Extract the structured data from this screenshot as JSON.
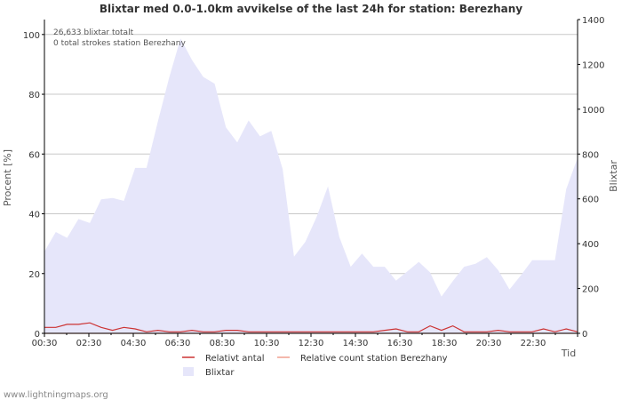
{
  "chart_data": {
    "type": "area",
    "title": "Blixtar med 0.0-1.0km avvikelse of the last 24h for station: Berezhany",
    "xlabel": "Tid",
    "ylabel_left": "Procent   [%]",
    "ylabel_right": "Blixtar",
    "ylim_left": [
      0,
      105
    ],
    "ylim_right": [
      0,
      1400
    ],
    "yticks_left": [
      "0",
      "20",
      "40",
      "60",
      "80",
      "100"
    ],
    "yticks_right": [
      "0",
      "200",
      "400",
      "600",
      "800",
      "1000",
      "1200",
      "1400"
    ],
    "xticks": [
      "00:30",
      "02:30",
      "04:30",
      "06:30",
      "08:30",
      "10:30",
      "12:30",
      "14:30",
      "16:30",
      "18:30",
      "20:30",
      "22:30"
    ],
    "annotations": [
      "26,633 blixtar totalt",
      "0 total strokes station Berezhany"
    ],
    "legend": [
      "Relativt antal",
      "Relative count station Berezhany",
      "Blixtar"
    ],
    "series": [
      {
        "name": "Blixtar",
        "axis": "right",
        "color": "#e6e6fa",
        "values": [
          365,
          452,
          426,
          510,
          492,
          598,
          604,
          591,
          738,
          738,
          946,
          1141,
          1316,
          1220,
          1144,
          1114,
          919,
          852,
          950,
          879,
          903,
          733,
          342,
          408,
          520,
          656,
          429,
          297,
          356,
          297,
          297,
          235,
          277,
          319,
          272,
          164,
          233,
          297,
          310,
          340,
          282,
          196,
          259,
          326,
          326,
          326,
          643,
          783
        ]
      },
      {
        "name": "Relativt antal",
        "axis": "left",
        "color": "#cc3333",
        "values": [
          2,
          2,
          3,
          3,
          3.5,
          2,
          1,
          2,
          1.5,
          0.5,
          1,
          0.5,
          0.5,
          1,
          0.5,
          0.5,
          1,
          1,
          0.5,
          0.5,
          0.5,
          0.5,
          0.5,
          0.5,
          0.5,
          0.5,
          0.5,
          0.5,
          0.5,
          0.5,
          1,
          1.5,
          0.5,
          0.5,
          2.5,
          1,
          2.5,
          0.5,
          0.5,
          0.5,
          1,
          0.5,
          0.5,
          0.5,
          1.5,
          0.5,
          1.5,
          0.5
        ]
      },
      {
        "name": "Relative count station Berezhany",
        "axis": "left",
        "color": "#f0a090",
        "values": [
          0,
          0,
          0,
          0,
          0,
          0,
          0,
          0,
          0,
          0,
          0,
          0,
          0,
          0,
          0,
          0,
          0,
          0,
          0,
          0,
          0,
          0,
          0,
          0,
          0,
          0,
          0,
          0,
          0,
          0,
          0,
          0,
          0,
          0,
          0,
          0,
          0,
          0,
          0,
          0,
          0,
          0,
          0,
          0,
          0,
          0,
          0,
          0
        ]
      }
    ]
  },
  "footer": {
    "watermark": "www.lightningmaps.org"
  },
  "colors": {
    "grid": "#c8c8c8",
    "axis": "#000000",
    "text": "#333333",
    "area": "#e6e6fa",
    "line_relative": "#cc3333",
    "line_station": "#f0a090"
  }
}
